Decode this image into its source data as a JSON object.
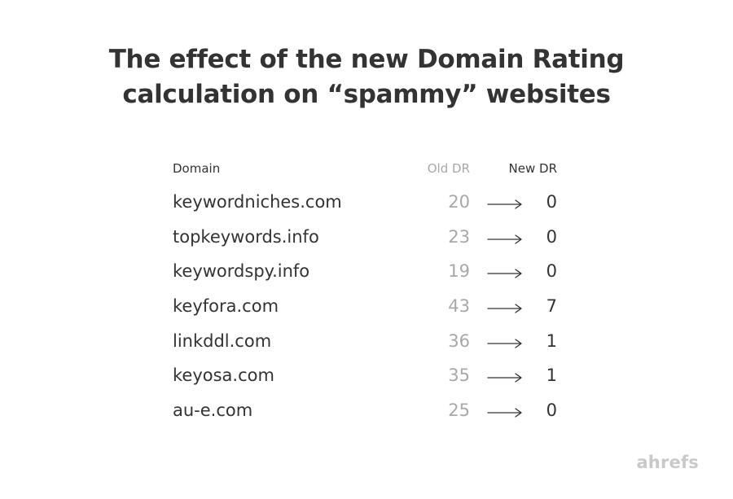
{
  "title_lines": [
    "The effect of the new Domain Rating",
    "calculation on “spammy” websites"
  ],
  "headers": {
    "domain": "Domain",
    "old_dr": "Old DR",
    "new_dr": "New DR"
  },
  "chart_data": {
    "type": "table",
    "title": "The effect of the new Domain Rating calculation on “spammy” websites",
    "columns": [
      "Domain",
      "Old DR",
      "New DR"
    ],
    "rows": [
      {
        "domain": "keywordniches.com",
        "old_dr": "20",
        "new_dr": "0"
      },
      {
        "domain": "topkeywords.info",
        "old_dr": "23",
        "new_dr": "0"
      },
      {
        "domain": "keywordspy.info",
        "old_dr": "19",
        "new_dr": "0"
      },
      {
        "domain": "keyfora.com",
        "old_dr": "43",
        "new_dr": "7"
      },
      {
        "domain": "linkddl.com",
        "old_dr": "36",
        "new_dr": "1"
      },
      {
        "domain": "keyosa.com",
        "old_dr": "35",
        "new_dr": "1"
      },
      {
        "domain": "au-e.com",
        "old_dr": "25",
        "new_dr": "0"
      }
    ]
  },
  "logo": "ahrefs",
  "colors": {
    "text": "#333333",
    "old_value": "#a8a8a8",
    "logo": "#c9c9c9"
  }
}
